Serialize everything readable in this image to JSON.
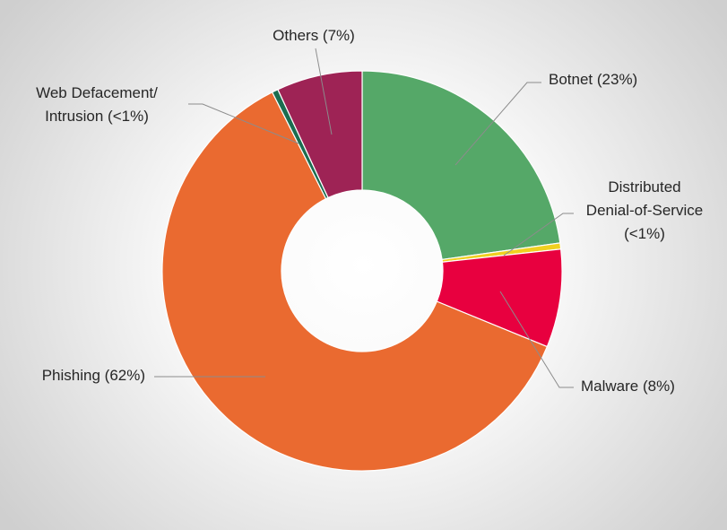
{
  "chart_data": {
    "type": "pie",
    "donut": true,
    "slices": [
      {
        "name": "Botnet",
        "value": 23,
        "label": "Botnet (23%)",
        "color": "#55a868"
      },
      {
        "name": "Distributed Denial-of-Service",
        "value": 0.5,
        "label_lines": [
          "Distributed",
          "Denial-of-Service",
          "(<1%)"
        ],
        "color": "#f0d020"
      },
      {
        "name": "Malware",
        "value": 8,
        "label": "Malware (8%)",
        "color": "#e8003f"
      },
      {
        "name": "Phishing",
        "value": 62,
        "label": "Phishing (62%)",
        "color": "#ea6a30"
      },
      {
        "name": "Web Defacement/ Intrusion",
        "value": 0.5,
        "label_lines": [
          "Web Defacement/",
          "Intrusion (<1%)"
        ],
        "color": "#1b6d50"
      },
      {
        "name": "Others",
        "value": 7,
        "label": "Others (7%)",
        "color": "#9e2355"
      }
    ],
    "legend": "none"
  }
}
